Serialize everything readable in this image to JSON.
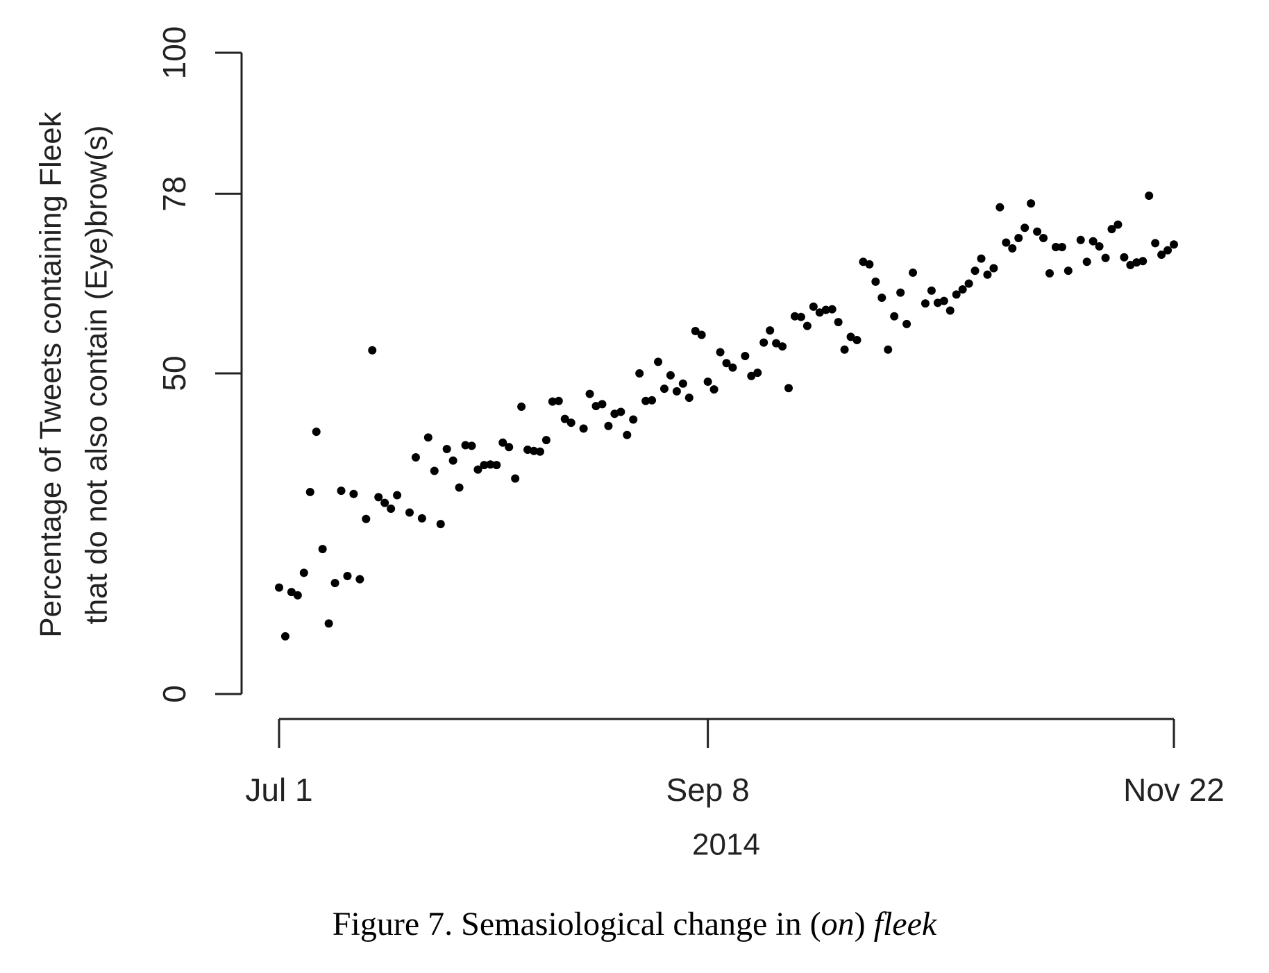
{
  "chart_data": {
    "type": "scatter",
    "ylabel": [
      "Percentage of Tweets containing Fleek",
      "that do not also contain (Eye)brow(s)"
    ],
    "xlabel": "2014",
    "caption": [
      "Figure 7. Semasiological change in (",
      "on",
      ") ",
      "fleek"
    ],
    "color": "#000000",
    "xlim": [
      0,
      144
    ],
    "xticks": [
      {
        "value": 0,
        "label": "Jul 1"
      },
      {
        "value": 69,
        "label": "Sep 8"
      },
      {
        "value": 144,
        "label": "Nov 22"
      }
    ],
    "ylim": [
      0,
      100
    ],
    "yticks": [
      0,
      50,
      78,
      100
    ],
    "x": [
      0,
      1,
      2,
      3,
      4,
      5,
      6,
      7,
      8,
      9,
      10,
      11,
      12,
      13,
      14,
      15,
      16,
      17,
      18,
      19,
      21,
      22,
      23,
      24,
      25,
      26,
      27,
      28,
      29,
      30,
      31,
      32,
      33,
      34,
      35,
      36,
      37,
      38,
      39,
      40,
      41,
      42,
      43,
      44,
      45,
      46,
      47,
      49,
      50,
      51,
      52,
      53,
      54,
      55,
      56,
      57,
      58,
      59,
      60,
      61,
      62,
      63,
      64,
      65,
      66,
      67,
      68,
      69,
      70,
      71,
      72,
      73,
      75,
      76,
      77,
      78,
      79,
      80,
      81,
      82,
      83,
      84,
      85,
      86,
      87,
      88,
      89,
      90,
      91,
      92,
      93,
      94,
      95,
      96,
      97,
      98,
      99,
      100,
      101,
      102,
      104,
      105,
      106,
      107,
      108,
      109,
      110,
      111,
      112,
      113,
      114,
      115,
      116,
      117,
      118,
      119,
      120,
      121,
      122,
      123,
      124,
      125,
      126,
      127,
      129,
      130,
      131,
      132,
      133,
      134,
      135,
      136,
      137,
      138,
      139,
      140,
      141,
      142,
      143,
      144
    ],
    "values": [
      16.6,
      9.0,
      15.9,
      15.4,
      18.9,
      31.5,
      40.9,
      22.6,
      11.0,
      17.3,
      31.7,
      18.4,
      31.2,
      17.9,
      27.3,
      53.6,
      30.7,
      29.8,
      28.9,
      31.0,
      28.3,
      36.9,
      27.4,
      40.0,
      34.8,
      26.5,
      38.2,
      36.4,
      32.2,
      38.8,
      38.7,
      35.0,
      35.7,
      35.8,
      35.7,
      39.2,
      38.5,
      33.6,
      44.8,
      38.1,
      37.9,
      37.8,
      39.6,
      45.6,
      45.7,
      42.9,
      42.3,
      41.4,
      46.8,
      44.9,
      45.2,
      41.8,
      43.7,
      44.0,
      40.4,
      42.8,
      50.0,
      45.7,
      45.8,
      51.8,
      47.6,
      49.7,
      47.2,
      48.4,
      46.2,
      56.6,
      56.0,
      48.7,
      47.5,
      53.3,
      51.6,
      50.9,
      52.7,
      49.6,
      50.1,
      54.8,
      56.7,
      54.7,
      54.2,
      47.7,
      58.9,
      58.8,
      57.4,
      60.4,
      59.5,
      59.9,
      60.0,
      58.0,
      53.7,
      55.7,
      55.2,
      67.4,
      67.0,
      64.3,
      61.8,
      53.7,
      58.9,
      62.6,
      57.7,
      65.7,
      60.9,
      62.9,
      61.0,
      61.3,
      59.8,
      62.3,
      63.1,
      64.0,
      66.0,
      67.9,
      65.4,
      66.4,
      75.9,
      70.4,
      69.5,
      71.1,
      72.7,
      76.5,
      72.1,
      71.1,
      65.6,
      69.7,
      69.7,
      66.0,
      70.8,
      67.4,
      70.6,
      69.8,
      68.0,
      72.5,
      73.2,
      68.1,
      66.9,
      67.3,
      67.5,
      77.7,
      70.3,
      68.5,
      69.2,
      70.1
    ]
  }
}
